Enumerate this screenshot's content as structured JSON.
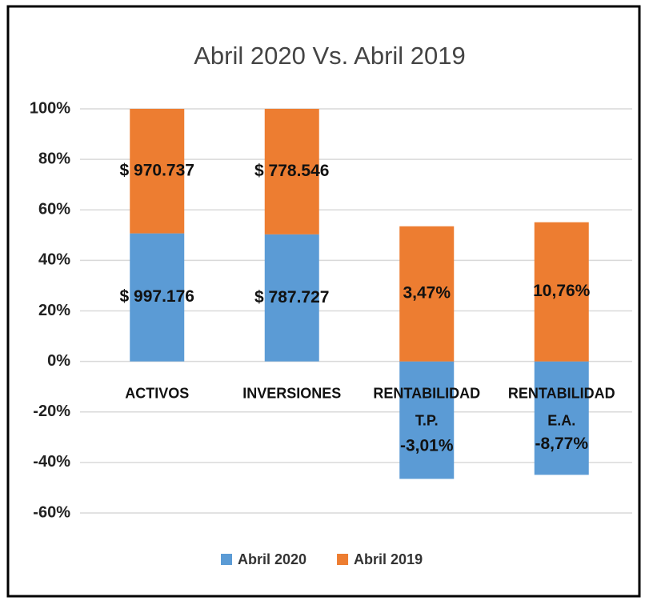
{
  "chart_data": {
    "type": "stacked_bar",
    "title": "Abril 2020 Vs. Abril 2019",
    "categories": [
      "ACTIVOS",
      "INVERSIONES",
      "RENTABILIDAD T.P.",
      "RENTABILIDAD E.A."
    ],
    "series": [
      {
        "name": "Abril 2020",
        "color": "#5b9bd5",
        "values": [
          50.7,
          50.3,
          -46.5,
          -44.9
        ],
        "labels": [
          "$ 997.176",
          "$ 787.727",
          "-3,01%",
          "-8,77%"
        ]
      },
      {
        "name": "Abril 2019",
        "color": "#ed7d31",
        "values": [
          49.3,
          49.7,
          53.5,
          55.1
        ],
        "labels": [
          "$ 970.737",
          "$ 778.546",
          "3,47%",
          "10,76%"
        ]
      }
    ],
    "ylim": [
      -60,
      100
    ],
    "yticks": [
      {
        "value": -60,
        "label": "-60%"
      },
      {
        "value": -40,
        "label": "-40%"
      },
      {
        "value": -20,
        "label": "-20%"
      },
      {
        "value": 0,
        "label": "0%"
      },
      {
        "value": 20,
        "label": "20%"
      },
      {
        "value": 40,
        "label": "40%"
      },
      {
        "value": 60,
        "label": "60%"
      },
      {
        "value": 80,
        "label": "80%"
      },
      {
        "value": 100,
        "label": "100%"
      }
    ],
    "grid": true,
    "legend": "bottom"
  }
}
